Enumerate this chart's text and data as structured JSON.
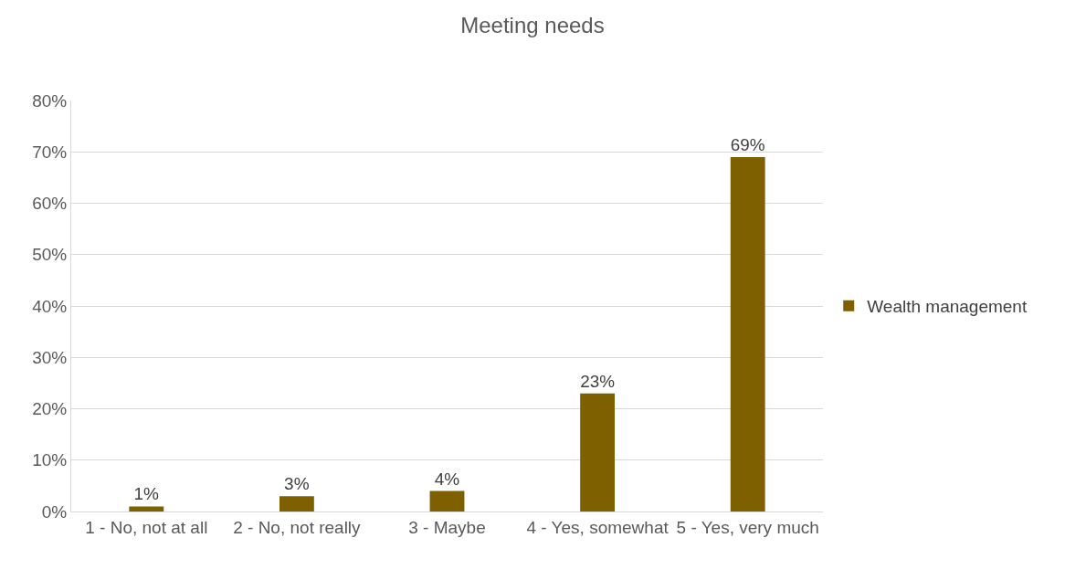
{
  "chart_data": {
    "type": "bar",
    "title": "Meeting needs",
    "categories": [
      "1 - No, not at all",
      "2 - No, not really",
      "3 - Maybe",
      "4 - Yes, somewhat",
      "5 - Yes, very much"
    ],
    "series": [
      {
        "name": "Wealth management",
        "color": "#7f6000",
        "values": [
          1,
          3,
          4,
          23,
          69
        ],
        "value_labels": [
          "1%",
          "3%",
          "4%",
          "23%",
          "69%"
        ]
      }
    ],
    "ylim": [
      0,
      80
    ],
    "yticks": [
      {
        "value": 0,
        "label": "0%"
      },
      {
        "value": 10,
        "label": "10%"
      },
      {
        "value": 20,
        "label": "20%"
      },
      {
        "value": 30,
        "label": "30%"
      },
      {
        "value": 40,
        "label": "40%"
      },
      {
        "value": 50,
        "label": "50%"
      },
      {
        "value": 60,
        "label": "60%"
      },
      {
        "value": 70,
        "label": "70%"
      },
      {
        "value": 80,
        "label": "80%"
      }
    ],
    "grid": "y",
    "legend": "right"
  }
}
